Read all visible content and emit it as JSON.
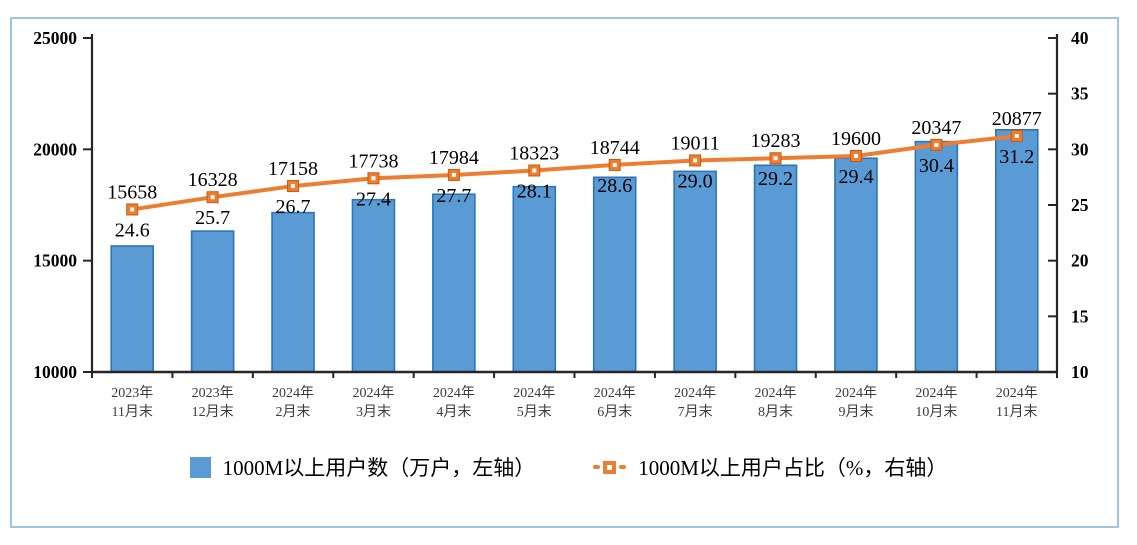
{
  "chart_data": {
    "type": "bar",
    "title": "",
    "xlabel": "",
    "ylabel_left": "万户",
    "ylabel_right": "%",
    "grid": false,
    "legend_position": "bottom",
    "categories": [
      {
        "line1": "2023年",
        "line2": "11月末"
      },
      {
        "line1": "2023年",
        "line2": "12月末"
      },
      {
        "line1": "2024年",
        "line2": "2月末"
      },
      {
        "line1": "2024年",
        "line2": "3月末"
      },
      {
        "line1": "2024年",
        "line2": "4月末"
      },
      {
        "line1": "2024年",
        "line2": "5月末"
      },
      {
        "line1": "2024年",
        "line2": "6月末"
      },
      {
        "line1": "2024年",
        "line2": "7月末"
      },
      {
        "line1": "2024年",
        "line2": "8月末"
      },
      {
        "line1": "2024年",
        "line2": "9月末"
      },
      {
        "line1": "2024年",
        "line2": "10月末"
      },
      {
        "line1": "2024年",
        "line2": "11月末"
      }
    ],
    "series": [
      {
        "name": "1000M以上用户数（万户，左轴）",
        "type": "bar",
        "axis": "left",
        "color": "#5B9BD5",
        "border_color": "#2E75B6",
        "values": [
          15658,
          16328,
          17158,
          17738,
          17984,
          18323,
          18744,
          19011,
          19283,
          19600,
          20347,
          20877
        ],
        "labels": [
          "15658",
          "16328",
          "17158",
          "17738",
          "17984",
          "18323",
          "18744",
          "19011",
          "19283",
          "19600",
          "20347",
          "20877"
        ]
      },
      {
        "name": "1000M以上用户占比（%，右轴）",
        "type": "line",
        "axis": "right",
        "color": "#ED7D31",
        "marker": "square",
        "values": [
          24.6,
          25.7,
          26.7,
          27.4,
          27.7,
          28.1,
          28.6,
          29.0,
          29.2,
          29.4,
          30.4,
          31.2
        ],
        "labels": [
          "24.6",
          "25.7",
          "26.7",
          "27.4",
          "27.7",
          "28.1",
          "28.6",
          "29.0",
          "29.2",
          "29.4",
          "30.4",
          "31.2"
        ]
      }
    ],
    "left_axis": {
      "min": 10000,
      "max": 25000,
      "step": 5000,
      "tick_labels": [
        "10000",
        "15000",
        "20000",
        "25000"
      ]
    },
    "right_axis": {
      "min": 10,
      "max": 40,
      "step": 5,
      "tick_labels": [
        "10",
        "15",
        "20",
        "25",
        "30",
        "35",
        "40"
      ]
    }
  },
  "colors": {
    "frame_border": "#9DC3E6",
    "axis": "#262626",
    "data_label": "#000000",
    "category_label": "#3B3B3B",
    "background": "#FFFFFF"
  }
}
